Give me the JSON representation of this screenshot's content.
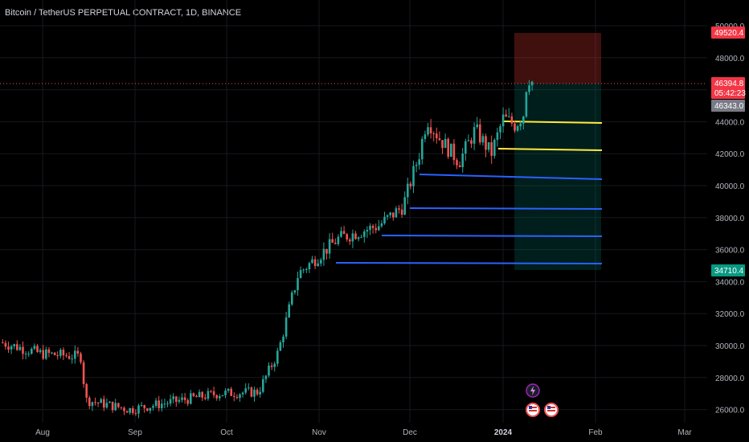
{
  "header": {
    "title": "Bitcoin / TetherUS PERPETUAL CONTRACT, 1D, BINANCE"
  },
  "colors": {
    "background": "#000000",
    "grid": "#17191f",
    "up_candle": "#26a69a",
    "down_candle": "#ef5350",
    "support_line": "#2962ff",
    "target_line": "#ffeb3b",
    "stop_zone": "#e53935",
    "profit_zone": "#00897b",
    "axis_text": "#b2b5be"
  },
  "price_axis": {
    "ticks": [
      "50000.0",
      "48000.0",
      "46000.0",
      "44000.0",
      "42000.0",
      "40000.0",
      "38000.0",
      "36000.0",
      "34000.0",
      "32000.0",
      "30000.0",
      "28000.0",
      "26000.0"
    ]
  },
  "time_axis": {
    "ticks": [
      "Aug",
      "Sep",
      "Oct",
      "Nov",
      "Dec",
      "2024",
      "Feb",
      "Mar"
    ]
  },
  "price_tags": {
    "stop": "49520.4",
    "current": "46394.8",
    "countdown": "05:42:23",
    "entry": "46343.0",
    "target": "34710.4"
  },
  "icons": [
    "lightning-event-icon",
    "us-flag-event-icon",
    "us-flag-event-icon-2"
  ],
  "chart_data": {
    "type": "candlestick",
    "symbol": "Bitcoin / TetherUS PERPETUAL CONTRACT",
    "interval": "1D",
    "exchange": "BINANCE",
    "ylim": [
      25500,
      51000
    ],
    "x_range": [
      "2023-07-15",
      "2024-03-08"
    ],
    "closes": [
      {
        "date": "2023-07-15",
        "close": 30200
      },
      {
        "date": "2023-08-01",
        "close": 29500
      },
      {
        "date": "2023-08-15",
        "close": 29300
      },
      {
        "date": "2023-08-17",
        "close": 26600
      },
      {
        "date": "2023-08-31",
        "close": 26000
      },
      {
        "date": "2023-09-15",
        "close": 26500
      },
      {
        "date": "2023-09-30",
        "close": 27000
      },
      {
        "date": "2023-10-15",
        "close": 27100
      },
      {
        "date": "2023-10-20",
        "close": 29600
      },
      {
        "date": "2023-10-23",
        "close": 33000
      },
      {
        "date": "2023-10-25",
        "close": 34500
      },
      {
        "date": "2023-11-09",
        "close": 36700
      },
      {
        "date": "2023-11-20",
        "close": 37500
      },
      {
        "date": "2023-12-04",
        "close": 41900
      },
      {
        "date": "2023-12-08",
        "close": 44200
      },
      {
        "date": "2023-12-18",
        "close": 41500
      },
      {
        "date": "2024-01-01",
        "close": 44200
      },
      {
        "date": "2024-01-08",
        "close": 46900
      },
      {
        "date": "2024-01-11",
        "close": 46343
      }
    ],
    "levels": {
      "support": [
        40600,
        38600,
        36900,
        35100
      ],
      "take_profit": [
        43900,
        42200
      ],
      "stop": 49520.4,
      "entry": 46343.0,
      "target": 34710.4,
      "current": 46394.8
    }
  }
}
